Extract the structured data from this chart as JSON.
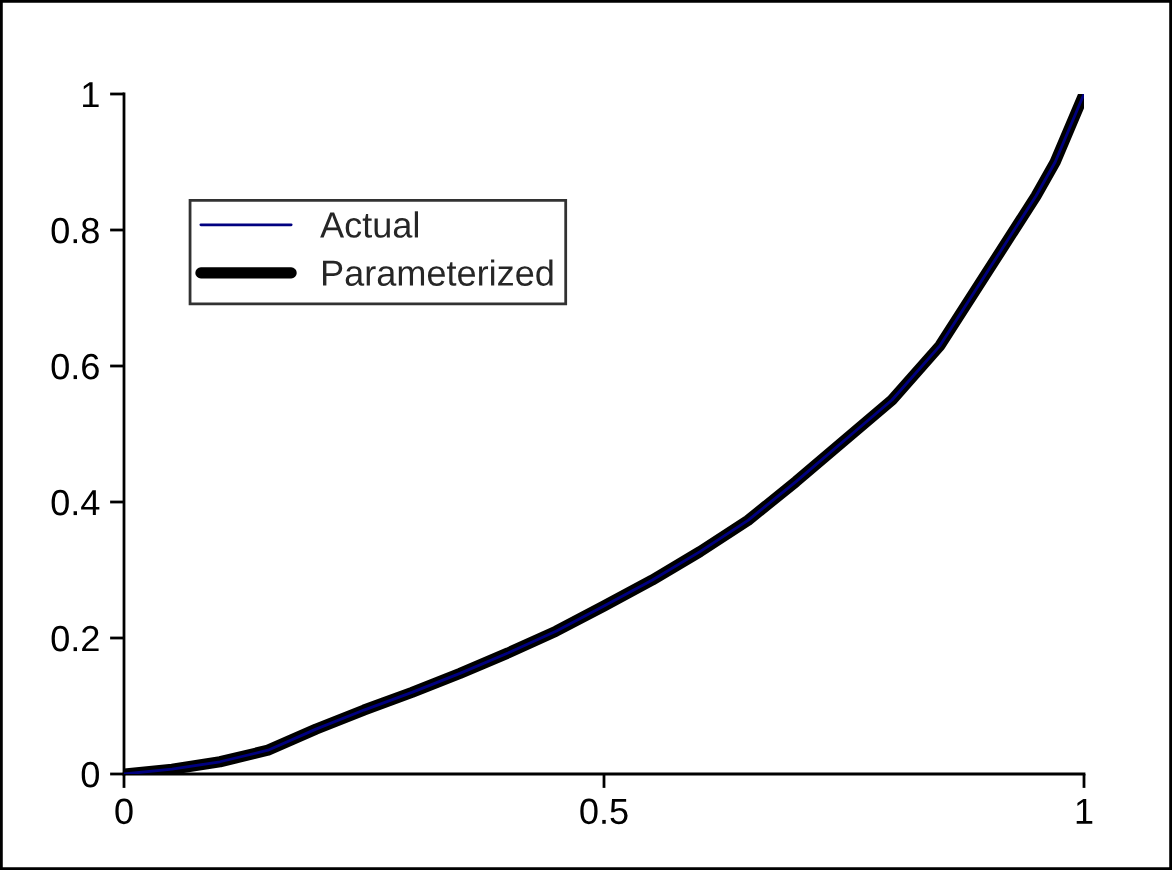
{
  "chart_data": {
    "type": "line",
    "x": [
      0,
      0.05,
      0.1,
      0.15,
      0.2,
      0.25,
      0.3,
      0.35,
      0.4,
      0.45,
      0.5,
      0.55,
      0.6,
      0.65,
      0.7,
      0.75,
      0.8,
      0.85,
      0.9,
      0.95,
      0.97,
      1
    ],
    "series": [
      {
        "name": "Actual",
        "color": "#000080",
        "values": [
          0,
          0.007,
          0.018,
          0.035,
          0.066,
          0.094,
          0.12,
          0.148,
          0.178,
          0.21,
          0.247,
          0.285,
          0.327,
          0.373,
          0.43,
          0.49,
          0.55,
          0.63,
          0.74,
          0.85,
          0.9,
          1
        ]
      },
      {
        "name": "Parameterized",
        "color": "#000000",
        "values": [
          0,
          0.007,
          0.018,
          0.035,
          0.066,
          0.094,
          0.12,
          0.148,
          0.178,
          0.21,
          0.247,
          0.285,
          0.327,
          0.373,
          0.43,
          0.49,
          0.55,
          0.63,
          0.74,
          0.85,
          0.9,
          1
        ]
      }
    ],
    "xlim": [
      0,
      1
    ],
    "xticks": [
      0,
      0.5,
      1
    ],
    "ylim": [
      0,
      1
    ],
    "yticks": [
      0,
      0.2,
      0.4,
      0.6,
      0.8,
      1
    ],
    "grid": false,
    "legend": "top left",
    "marker": "none",
    "line_style": "solid"
  }
}
